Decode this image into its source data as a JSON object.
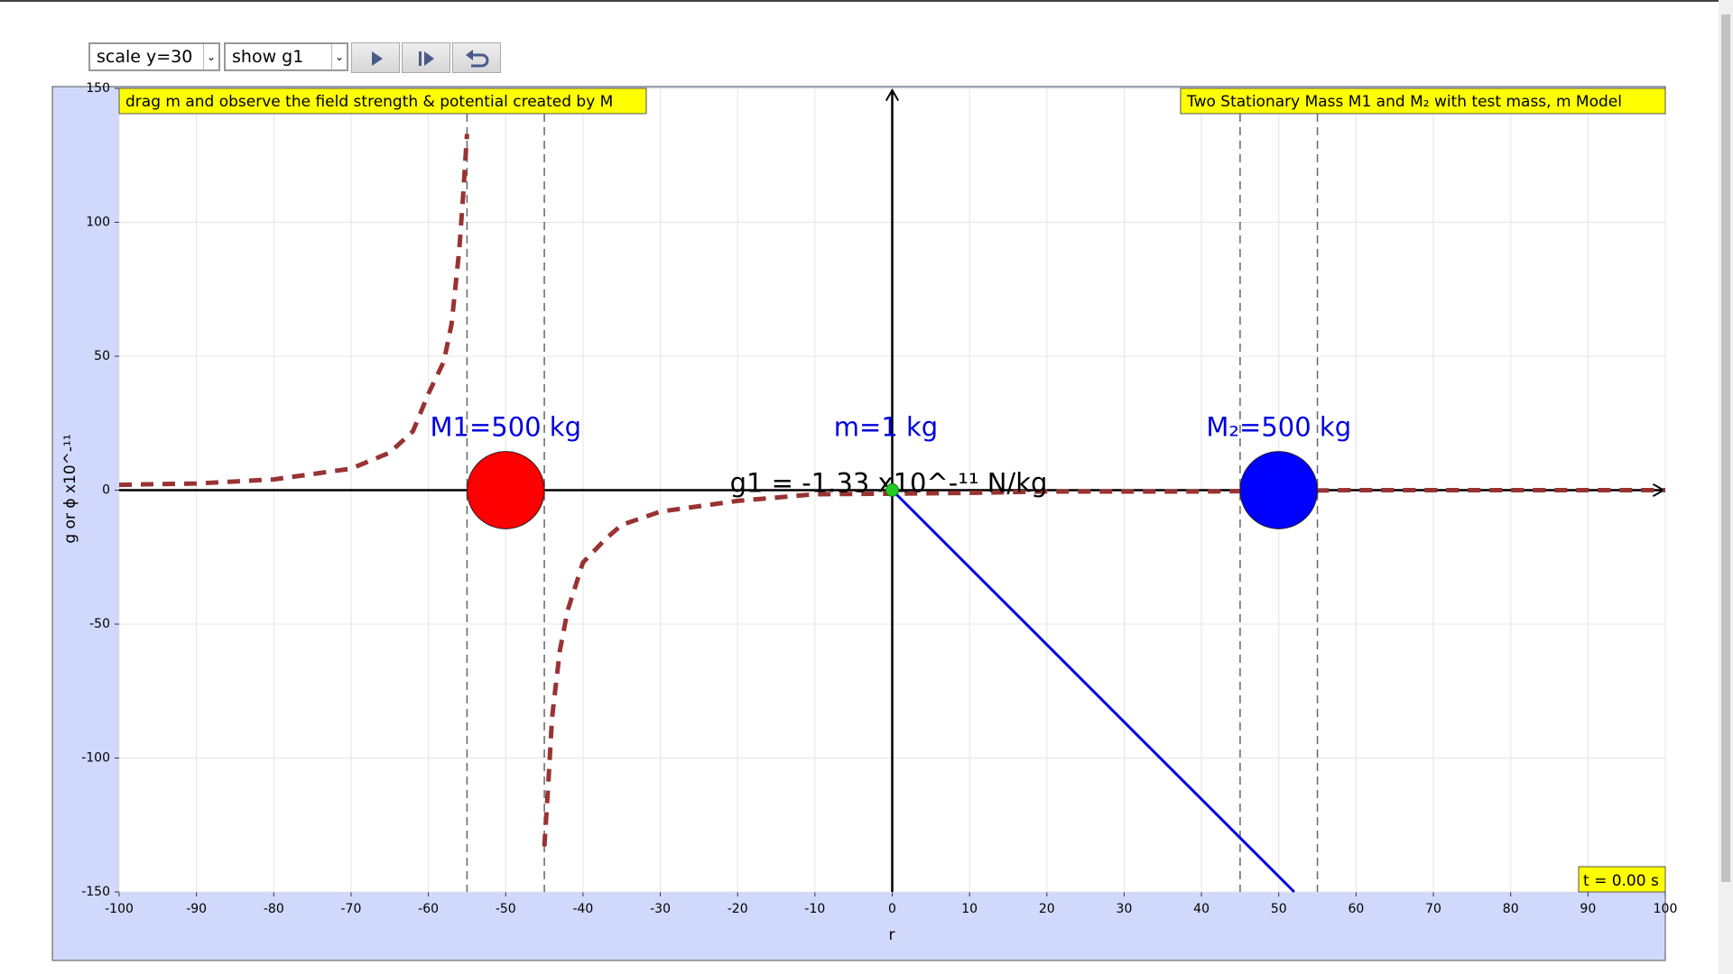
{
  "controls": {
    "scale_select": "scale y=30",
    "show_select": "show g1"
  },
  "plot": {
    "instruction": "drag m and observe the field strength & potential created by M",
    "model_title": "Two Stationary Mass M1 and M₂ with test mass, m Model",
    "time_label": "t = 0.00 s",
    "x_axis_label": "r",
    "y_axis_label": "g or ϕ x10^-¹¹",
    "xlim": [
      -100,
      100
    ],
    "xticks": [
      -100,
      -90,
      -80,
      -70,
      -60,
      -50,
      -40,
      -30,
      -20,
      -10,
      0,
      10,
      20,
      30,
      40,
      50,
      60,
      70,
      80,
      90,
      100
    ],
    "ylim": [
      -150,
      150
    ],
    "yticks": [
      -150,
      -100,
      -50,
      0,
      50,
      100,
      150
    ],
    "grid": true,
    "mass_radius": 5,
    "masses": [
      {
        "label": "M1=500 kg",
        "x": -50,
        "color": "#ff0000"
      },
      {
        "label": "M₂=500 kg",
        "x": 50,
        "color": "#0000ff"
      }
    ],
    "test_mass": {
      "label": "m=1 kg",
      "x": 0,
      "color": "#22cc22"
    },
    "field_readout": "g1 = -1.33 x10^-¹¹ N/kg",
    "force_vector_end": {
      "x": 52,
      "y": -150
    },
    "g1_curve": {
      "color": "#993333",
      "x": [
        -100,
        -90,
        -80,
        -70,
        -65,
        -62,
        -60,
        -58,
        -57,
        -56,
        -55.5,
        -55,
        -50,
        -45,
        -44.5,
        -44,
        -43,
        -42,
        -40,
        -37,
        -35,
        -30,
        -20,
        -10,
        0,
        10,
        20,
        40,
        60,
        100
      ],
      "y": [
        2,
        2.5,
        4,
        8,
        14,
        22,
        36,
        48,
        62,
        90,
        110,
        133,
        null,
        -133,
        -110,
        -85,
        -60,
        -45,
        -27,
        -18,
        -13,
        -8,
        -4,
        -1.5,
        -1.3,
        -1,
        -0.5,
        -0.5,
        0,
        0
      ]
    }
  }
}
